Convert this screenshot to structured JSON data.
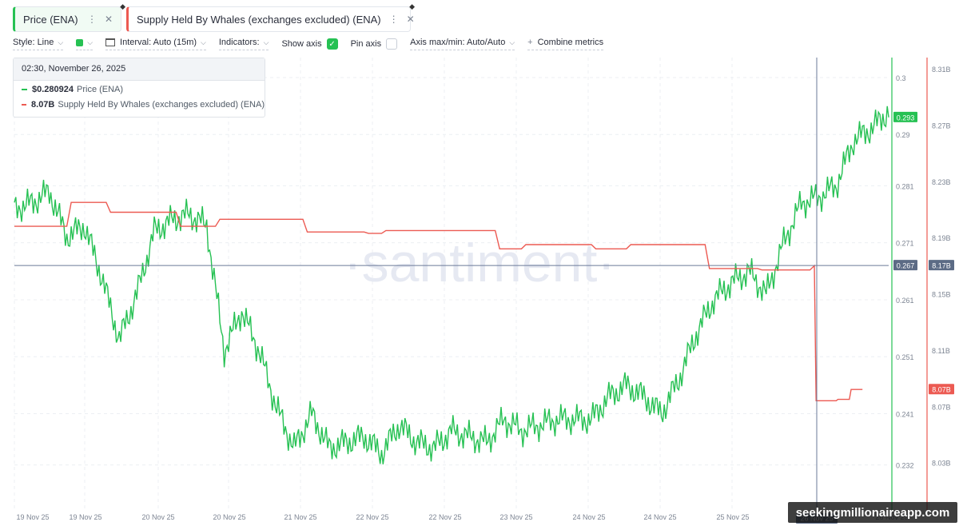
{
  "metrics": [
    {
      "label": "Price (ENA)",
      "color": "#26c153"
    },
    {
      "label": "Supply Held By Whales (exchanges excluded) (ENA)",
      "color": "#ec5a52"
    }
  ],
  "toolbar": {
    "style": "Style: Line",
    "interval": "Interval: Auto (15m)",
    "indicators": "Indicators:",
    "show_axis": "Show axis",
    "pin_axis": "Pin axis",
    "axis_maxmin": "Axis max/min: Auto/Auto",
    "combine": "Combine metrics"
  },
  "tooltip": {
    "datetime": "02:30, November 26, 2025",
    "price_value": "$0.280924",
    "price_name": "Price (ENA)",
    "whales_value": "8.07B",
    "whales_name": "Supply Held By Whales (exchanges excluded) (ENA)"
  },
  "watermark": "·santiment·",
  "site_watermark": "seekingmillionaireapp.com",
  "chart_data": {
    "type": "line",
    "x_labels": [
      "19 Nov 25",
      "19 Nov 25",
      "20 Nov 25",
      "20 Nov 25",
      "21 Nov 25",
      "22 Nov 25",
      "22 Nov 25",
      "23 Nov 25",
      "24 Nov 25",
      "24 Nov 25",
      "25 Nov 25",
      "26 Nov 25",
      "26 Nov 25"
    ],
    "y_left_ticks": [
      "0.3",
      "0.29",
      "0.281",
      "0.271",
      "0.261",
      "0.251",
      "0.241",
      "0.232"
    ],
    "y_right_ticks": [
      "8.31B",
      "8.27B",
      "8.23B",
      "8.19B",
      "8.15B",
      "8.11B",
      "8.07B",
      "8.03B"
    ],
    "price_current": "0.293",
    "crosshair_price": "0.267",
    "crosshair_whales": "8.17B",
    "whales_current": "8.07B",
    "crosshair_date": "26 Nov 25",
    "series": [
      {
        "name": "Price (ENA)",
        "axis": "left",
        "color": "#26c153",
        "x": [
          0,
          2,
          4,
          6,
          8,
          10,
          12,
          14,
          16,
          18,
          20,
          22,
          24,
          26,
          28,
          30,
          32,
          34,
          36,
          38,
          40,
          42,
          44,
          46,
          48,
          50,
          52,
          54,
          56,
          58,
          60,
          62,
          64,
          66,
          68,
          70,
          72,
          74,
          76,
          78,
          80,
          82,
          84,
          86,
          88,
          90,
          92,
          94,
          96,
          98,
          100
        ],
        "y": [
          0.277,
          0.278,
          0.28,
          0.272,
          0.274,
          0.265,
          0.254,
          0.262,
          0.273,
          0.275,
          0.276,
          0.274,
          0.252,
          0.259,
          0.252,
          0.242,
          0.235,
          0.241,
          0.235,
          0.236,
          0.237,
          0.234,
          0.239,
          0.236,
          0.235,
          0.238,
          0.237,
          0.236,
          0.24,
          0.238,
          0.239,
          0.24,
          0.24,
          0.24,
          0.244,
          0.246,
          0.244,
          0.241,
          0.247,
          0.255,
          0.261,
          0.264,
          0.266,
          0.262,
          0.271,
          0.278,
          0.279,
          0.281,
          0.289,
          0.291,
          0.294
        ]
      },
      {
        "name": "Supply Held By Whales (exchanges excluded) (ENA)",
        "axis": "right",
        "color": "#ec5a52",
        "x": [
          0,
          6,
          6.5,
          10.5,
          11,
          18.5,
          19,
          23,
          23.5,
          33,
          33.5,
          40,
          40.5,
          42,
          42.5,
          55,
          55.5,
          58,
          58.5,
          66,
          66.5,
          70,
          70.5,
          79,
          79.5,
          85,
          85.5,
          91,
          91.5,
          91.7,
          94,
          94.2,
          95.5,
          95.7,
          97
        ],
        "y": [
          8.198,
          8.198,
          8.215,
          8.215,
          8.208,
          8.208,
          8.198,
          8.198,
          8.203,
          8.203,
          8.194,
          8.194,
          8.193,
          8.193,
          8.195,
          8.195,
          8.182,
          8.182,
          8.185,
          8.185,
          8.182,
          8.182,
          8.185,
          8.185,
          8.168,
          8.168,
          8.167,
          8.167,
          8.17,
          8.074,
          8.074,
          8.075,
          8.075,
          8.082,
          8.082
        ]
      }
    ]
  }
}
